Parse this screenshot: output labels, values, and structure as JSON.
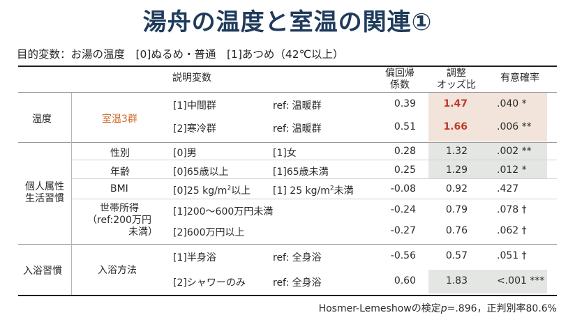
{
  "title": "湯舟の温度と室温の関連①",
  "subtitle": "目的変数：お湯の温度　[0]ぬるめ・普通　[1]あつめ（42℃以上）",
  "headers": {
    "explanatory": "説明変数",
    "coef_line1": "偏回帰",
    "coef_line2": "係数",
    "or_line1": "調整",
    "or_line2": "オッズ比",
    "p_header": "有意確率"
  },
  "groups": {
    "temp": "温度",
    "personal_line1": "個人属性",
    "personal_line2": "生活習慣",
    "bath": "入浴習慣"
  },
  "variables": {
    "room_temp": "室温3群",
    "sex": "性別",
    "age": "年齢",
    "bmi": "BMI",
    "income_line1": "世帯所得",
    "income_line2": "（ref:200万円",
    "income_line3": "未満）",
    "bath_method": "入浴方法"
  },
  "rows": [
    {
      "level": "[1]中間群",
      "ref": "ref: 温暖群",
      "coef": "0.39",
      "or": "1.47",
      "p": ".040 *"
    },
    {
      "level": "[2]寒冷群",
      "ref": "ref: 温暖群",
      "coef": "0.51",
      "or": "1.66",
      "p": ".006 **"
    },
    {
      "level": "[0]男",
      "ref": "[1]女",
      "coef": "0.28",
      "or": "1.32",
      "p": ".002 **"
    },
    {
      "level": "[0]65歳以上",
      "ref": "[1]65歳未満",
      "coef": "0.25",
      "or": "1.29",
      "p": ".012 *"
    },
    {
      "level": "[0]25 kg/m",
      "ref": "[1] 25 kg/m",
      "coef": "-0.08",
      "or": "0.92",
      "p": ".427"
    },
    {
      "level": "[1]200～600万円未満",
      "ref": "",
      "coef": "-0.24",
      "or": "0.79",
      "p": ".078 †"
    },
    {
      "level": "[2]600万円以上",
      "ref": "",
      "coef": "-0.27",
      "or": "0.76",
      "p": ".062 †"
    },
    {
      "level": "[1]半身浴",
      "ref": "ref: 全身浴",
      "coef": "-0.56",
      "or": "0.57",
      "p": ".051 †"
    },
    {
      "level": "[2]シャワーのみ",
      "ref": "ref: 全身浴",
      "coef": "0.60",
      "or": "1.83",
      "p": "<.001 ***"
    }
  ],
  "bmi_sup": "2",
  "bmi_left_suffix": "以上",
  "bmi_right_suffix": "未満",
  "footer_prefix": "Hosmer-Lemeshowの検定",
  "footer_p": "p",
  "footer_suffix": "=.896，正判別率80.6%",
  "colors": {
    "title": "#1f3b5c",
    "room_temp_label": "#d36a2d",
    "highlight_or": "#c0392b",
    "shade_warm": "#f2e4da",
    "shade_gray": "#e4e6e4"
  }
}
